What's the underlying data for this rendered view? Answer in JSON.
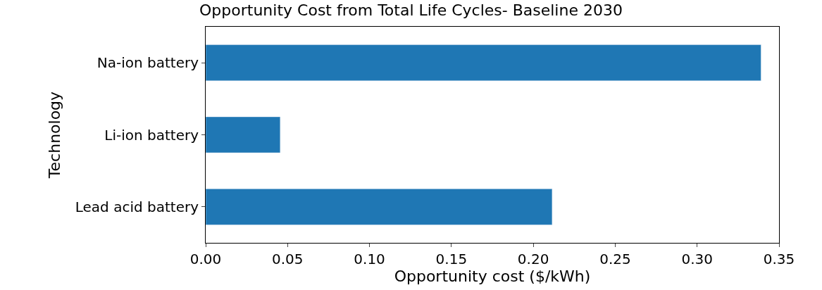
{
  "chart_data": {
    "type": "bar",
    "orientation": "horizontal",
    "title": "Opportunity Cost from Total Life Cycles- Baseline 2030",
    "xlabel": "Opportunity cost ($/kWh)",
    "ylabel": "Technology",
    "categories": [
      "Na-ion battery",
      "Li-ion battery",
      "Lead acid battery"
    ],
    "values": [
      0.339,
      0.0455,
      0.2115
    ],
    "color": "#1f77b4",
    "xlim": [
      0,
      0.35
    ],
    "xticks": [
      {
        "value": 0,
        "label": "0.00"
      },
      {
        "value": 0.05,
        "label": "0.05"
      },
      {
        "value": 0.1,
        "label": "0.10"
      },
      {
        "value": 0.15,
        "label": "0.15"
      },
      {
        "value": 0.2,
        "label": "0.20"
      },
      {
        "value": 0.25,
        "label": "0.25"
      },
      {
        "value": 0.3,
        "label": "0.30"
      },
      {
        "value": 0.35,
        "label": "0.35"
      }
    ],
    "legend": false
  }
}
